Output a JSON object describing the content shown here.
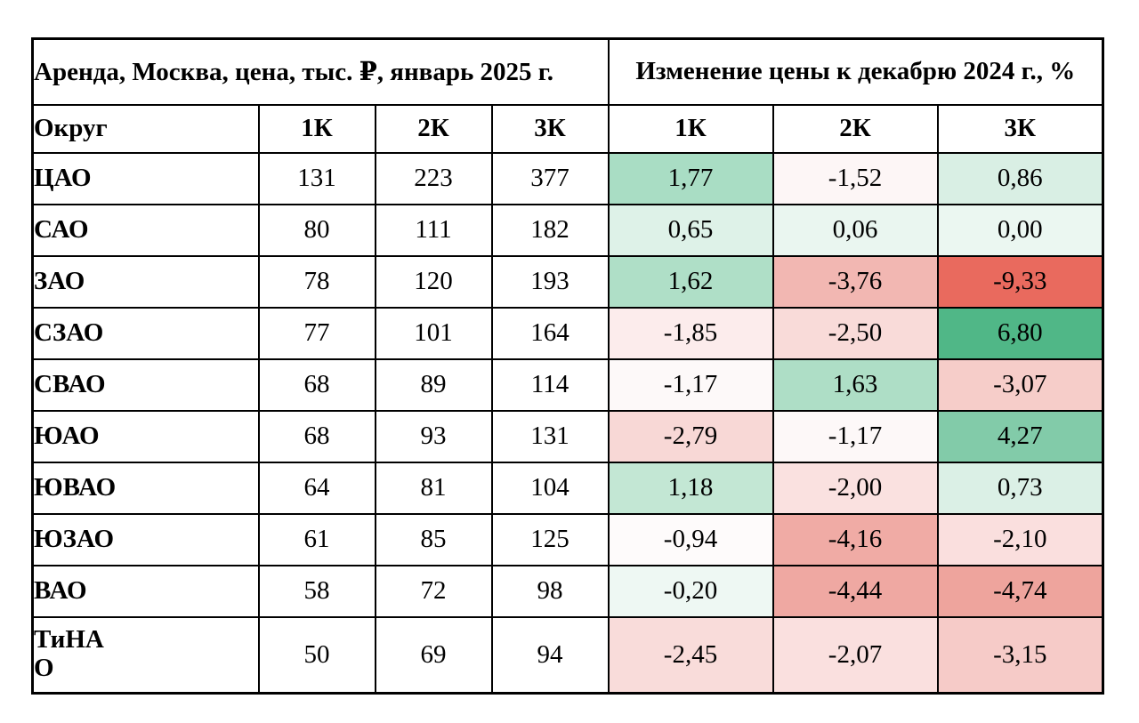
{
  "table": {
    "title_left": "Аренда, Москва, цена, тыс. ₽, январь 2025 г.",
    "title_right": "Изменение цены к декабрю 2024 г., %",
    "columns": {
      "district": "Округ",
      "price": [
        "1К",
        "2К",
        "3К"
      ],
      "change": [
        "1К",
        "2К",
        "3К"
      ]
    },
    "rows": [
      {
        "district": "ЦАО",
        "prices": [
          "131",
          "223",
          "377"
        ],
        "changes": [
          "1,77",
          "-1,52",
          "0,86"
        ],
        "change_colors": [
          "#a9ddc4",
          "#fdf6f6",
          "#d9efe4"
        ]
      },
      {
        "district": "САО",
        "prices": [
          "80",
          "111",
          "182"
        ],
        "changes": [
          "0,65",
          "0,06",
          "0,00"
        ],
        "change_colors": [
          "#def2e8",
          "#eaf6f0",
          "#ebf7f1"
        ]
      },
      {
        "district": "ЗАО",
        "prices": [
          "78",
          "120",
          "193"
        ],
        "changes": [
          "1,62",
          "-3,76",
          "-9,33"
        ],
        "change_colors": [
          "#afdfc7",
          "#f2b7b2",
          "#e96a5e"
        ]
      },
      {
        "district": "СЗАО",
        "prices": [
          "77",
          "101",
          "164"
        ],
        "changes": [
          "-1,85",
          "-2,50",
          "6,80"
        ],
        "change_colors": [
          "#fcecec",
          "#f9dbd9",
          "#50b787"
        ]
      },
      {
        "district": "СВАО",
        "prices": [
          "68",
          "89",
          "114"
        ],
        "changes": [
          "-1,17",
          "1,63",
          "-3,07"
        ],
        "change_colors": [
          "#fdf9f9",
          "#aedec6",
          "#f6cdc9"
        ]
      },
      {
        "district": "ЮАО",
        "prices": [
          "68",
          "93",
          "131"
        ],
        "changes": [
          "-2,79",
          "-1,17",
          "4,27"
        ],
        "change_colors": [
          "#f8d8d6",
          "#fdf8f8",
          "#82cba9"
        ]
      },
      {
        "district": "ЮВАО",
        "prices": [
          "64",
          "81",
          "104"
        ],
        "changes": [
          "1,18",
          "-2,00",
          "0,73"
        ],
        "change_colors": [
          "#c3e7d4",
          "#fae1e0",
          "#dbf0e6"
        ]
      },
      {
        "district": "ЮЗАО",
        "prices": [
          "61",
          "85",
          "125"
        ],
        "changes": [
          "-0,94",
          "-4,16",
          "-2,10"
        ],
        "change_colors": [
          "#fefbfb",
          "#f0aba5",
          "#fadfde"
        ]
      },
      {
        "district": "ВАО",
        "prices": [
          "58",
          "72",
          "98"
        ],
        "changes": [
          "-0,20",
          "-4,44",
          "-4,74"
        ],
        "change_colors": [
          "#eef8f3",
          "#efa8a2",
          "#eea49d"
        ]
      },
      {
        "district": "ТиНА\nО",
        "prices": [
          "50",
          "69",
          "94"
        ],
        "changes": [
          "-2,45",
          "-2,07",
          "-3,15"
        ],
        "change_colors": [
          "#f9dcda",
          "#fae0df",
          "#f6cbc8"
        ]
      }
    ]
  },
  "chart_data": {
    "type": "table",
    "title": "Аренда, Москва, цена, тыс. ₽, январь 2025 г. — Изменение цены к декабрю 2024 г., %",
    "row_header": "Округ",
    "rows": [
      "ЦАО",
      "САО",
      "ЗАО",
      "СЗАО",
      "СВАО",
      "ЮАО",
      "ЮВАО",
      "ЮЗАО",
      "ВАО",
      "ТиНАО"
    ],
    "sections": [
      {
        "name": "Аренда, Москва, цена, тыс. ₽, январь 2025 г.",
        "columns": [
          "1К",
          "2К",
          "3К"
        ],
        "values": [
          [
            131,
            223,
            377
          ],
          [
            80,
            111,
            182
          ],
          [
            78,
            120,
            193
          ],
          [
            77,
            101,
            164
          ],
          [
            68,
            89,
            114
          ],
          [
            68,
            93,
            131
          ],
          [
            64,
            81,
            104
          ],
          [
            61,
            85,
            125
          ],
          [
            58,
            72,
            98
          ],
          [
            50,
            69,
            94
          ]
        ]
      },
      {
        "name": "Изменение цены к декабрю 2024 г., %",
        "columns": [
          "1К",
          "2К",
          "3К"
        ],
        "values": [
          [
            1.77,
            -1.52,
            0.86
          ],
          [
            0.65,
            0.06,
            0.0
          ],
          [
            1.62,
            -3.76,
            -9.33
          ],
          [
            -1.85,
            -2.5,
            6.8
          ],
          [
            -1.17,
            1.63,
            -3.07
          ],
          [
            -2.79,
            -1.17,
            4.27
          ],
          [
            1.18,
            -2.0,
            0.73
          ],
          [
            -0.94,
            -4.16,
            -2.1
          ],
          [
            -0.2,
            -4.44,
            -4.74
          ],
          [
            -2.45,
            -2.07,
            -3.15
          ]
        ],
        "color_scale": {
          "min_red": "#e96a5e",
          "mid_white": "#ffffff",
          "max_green": "#50b787"
        }
      }
    ]
  }
}
